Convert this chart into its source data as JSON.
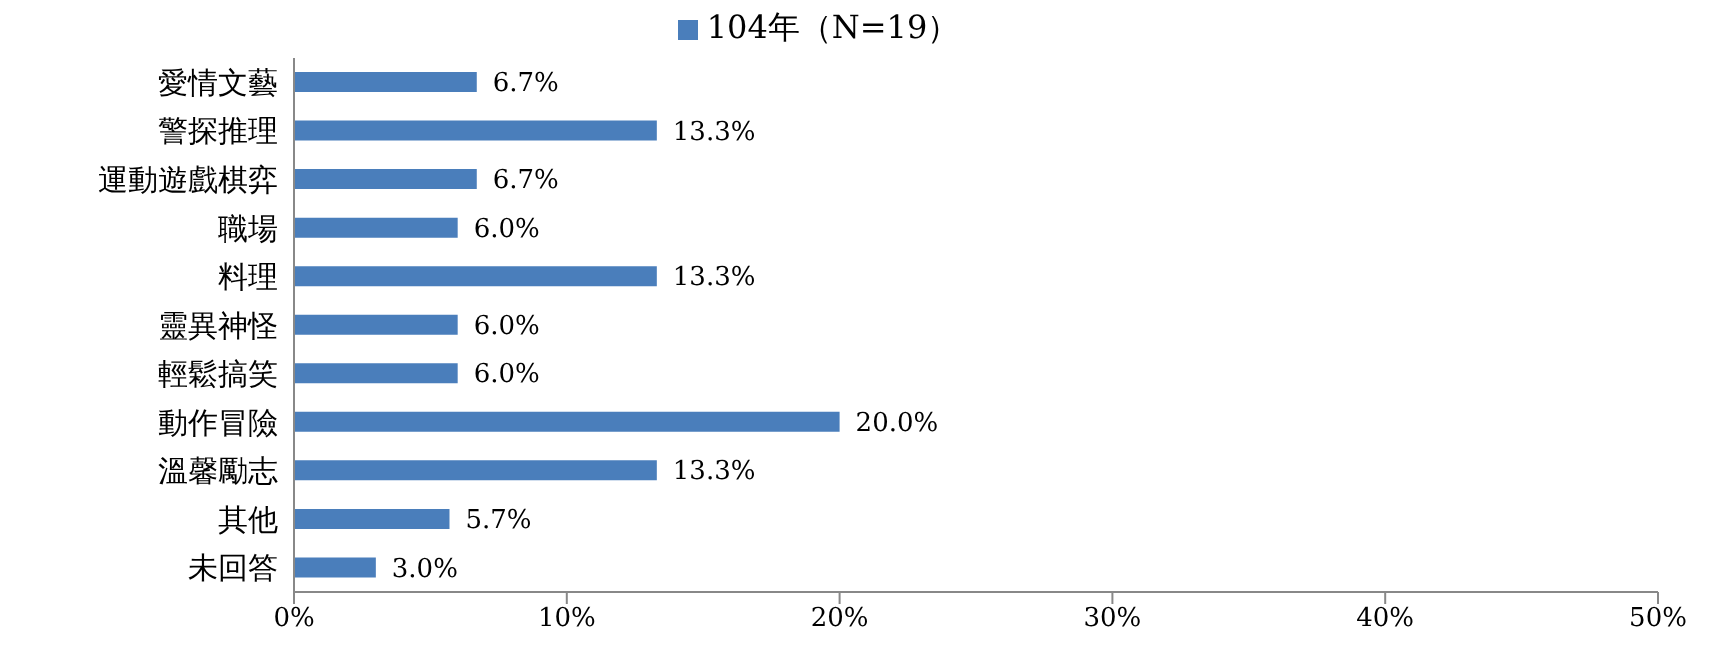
{
  "chart_data": {
    "type": "bar",
    "orientation": "horizontal",
    "categories": [
      "愛情文藝",
      "警探推理",
      "運動遊戲棋弈",
      "職場",
      "料理",
      "靈異神怪",
      "輕鬆搞笑",
      "動作冒險",
      "溫馨勵志",
      "其他",
      "未回答"
    ],
    "series": [
      {
        "name": "104年（N=19）",
        "color": "#4a7ebb",
        "values": [
          6.7,
          13.3,
          6.7,
          6.0,
          13.3,
          6.0,
          6.0,
          20.0,
          13.3,
          5.7,
          3.0
        ],
        "value_labels": [
          "6.7%",
          "13.3%",
          "6.7%",
          "6.0%",
          "13.3%",
          "6.0%",
          "6.0%",
          "20.0%",
          "13.3%",
          "5.7%",
          "3.0%"
        ]
      }
    ],
    "xlim": [
      0,
      50
    ],
    "xticks": [
      {
        "value": 0,
        "label": "0%"
      },
      {
        "value": 10,
        "label": "10%"
      },
      {
        "value": 20,
        "label": "20%"
      },
      {
        "value": 30,
        "label": "30%"
      },
      {
        "value": 40,
        "label": "40%"
      },
      {
        "value": 50,
        "label": "50%"
      }
    ],
    "grid": false,
    "legend": "top"
  }
}
